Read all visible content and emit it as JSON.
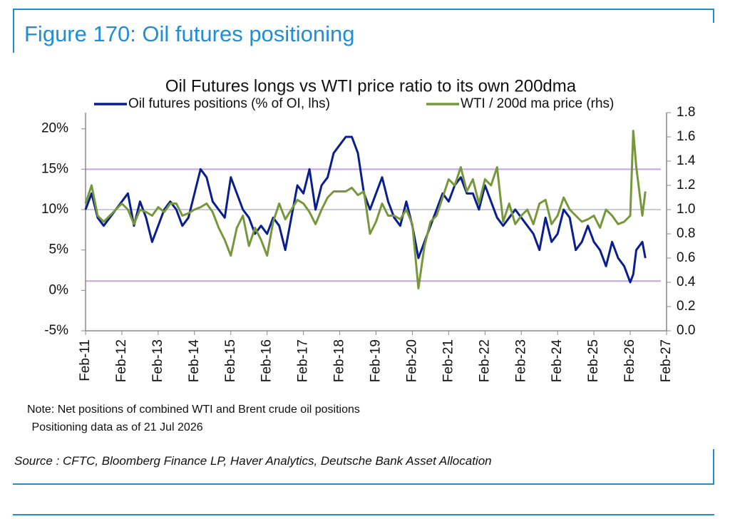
{
  "header": {
    "title": "Figure 170: Oil futures positioning"
  },
  "chart_data": {
    "type": "line",
    "title": "Oil Futures longs vs WTI price ratio to its own 200dma",
    "x": [
      "2011-02",
      "2011-04",
      "2011-06",
      "2011-08",
      "2011-10",
      "2011-12",
      "2012-02",
      "2012-04",
      "2012-06",
      "2012-08",
      "2012-10",
      "2012-12",
      "2013-02",
      "2013-04",
      "2013-06",
      "2013-08",
      "2013-10",
      "2013-12",
      "2014-02",
      "2014-04",
      "2014-06",
      "2014-08",
      "2014-10",
      "2014-12",
      "2015-02",
      "2015-04",
      "2015-06",
      "2015-08",
      "2015-10",
      "2015-12",
      "2016-02",
      "2016-04",
      "2016-06",
      "2016-08",
      "2016-10",
      "2016-12",
      "2017-02",
      "2017-04",
      "2017-06",
      "2017-08",
      "2017-10",
      "2017-12",
      "2018-02",
      "2018-04",
      "2018-06",
      "2018-08",
      "2018-10",
      "2018-12",
      "2019-02",
      "2019-04",
      "2019-06",
      "2019-08",
      "2019-10",
      "2019-12",
      "2020-02",
      "2020-04",
      "2020-06",
      "2020-08",
      "2020-10",
      "2020-12",
      "2021-02",
      "2021-04",
      "2021-06",
      "2021-08",
      "2021-10",
      "2021-12",
      "2022-02",
      "2022-04",
      "2022-06",
      "2022-08",
      "2022-10",
      "2022-12",
      "2023-02",
      "2023-04",
      "2023-06",
      "2023-08",
      "2023-10",
      "2023-12",
      "2024-02",
      "2024-04",
      "2024-06",
      "2024-08",
      "2024-10",
      "2024-12",
      "2025-02",
      "2025-04",
      "2025-06",
      "2025-08",
      "2025-10",
      "2025-12",
      "2026-02",
      "2026-03",
      "2026-04",
      "2026-06",
      "2026-07"
    ],
    "series": [
      {
        "name": "Oil futures positions (% of OI, lhs)",
        "color": "#0a1f8f",
        "axis": "y",
        "values": [
          10,
          12,
          9,
          8,
          9,
          10,
          11,
          12,
          8,
          11,
          9,
          6,
          8,
          10,
          11,
          10,
          8,
          9,
          12,
          15,
          14,
          11,
          10,
          9,
          14,
          12,
          10,
          9,
          7,
          8,
          7,
          9,
          8,
          5,
          9,
          13,
          12,
          15,
          10,
          13,
          14,
          17,
          18,
          19,
          19,
          17,
          12,
          10,
          12,
          14,
          11,
          9,
          8,
          11,
          8,
          4,
          6,
          8,
          10,
          12,
          11,
          13,
          14,
          12,
          12,
          10,
          13,
          11,
          9,
          8,
          9,
          10,
          9,
          8,
          7,
          5,
          9,
          6,
          7,
          10,
          9,
          5,
          6,
          8,
          6,
          5,
          3,
          6,
          4,
          3,
          1,
          2,
          5,
          6,
          4
        ]
      },
      {
        "name": "WTI / 200d ma price (rhs)",
        "color": "#77983a",
        "axis": "y2",
        "values": [
          1.05,
          1.2,
          0.95,
          0.9,
          0.95,
          1.0,
          1.05,
          1.0,
          0.88,
          1.0,
          0.98,
          0.95,
          1.02,
          0.98,
          1.05,
          1.05,
          0.95,
          0.97,
          1.0,
          1.02,
          1.05,
          0.98,
          0.85,
          0.75,
          0.62,
          0.85,
          0.95,
          0.7,
          0.85,
          0.75,
          0.62,
          0.9,
          1.05,
          0.92,
          1.0,
          1.08,
          1.05,
          0.98,
          0.88,
          1.0,
          1.1,
          1.15,
          1.15,
          1.15,
          1.18,
          1.12,
          1.15,
          0.8,
          0.9,
          1.05,
          0.95,
          0.95,
          0.92,
          1.0,
          0.88,
          0.35,
          0.7,
          0.9,
          0.95,
          1.1,
          1.25,
          1.2,
          1.35,
          1.15,
          1.25,
          1.05,
          1.25,
          1.2,
          1.35,
          0.9,
          1.05,
          0.88,
          0.95,
          1.0,
          0.88,
          1.05,
          1.08,
          0.88,
          0.95,
          1.1,
          1.0,
          0.95,
          0.9,
          0.92,
          0.95,
          0.85,
          1.0,
          0.95,
          0.88,
          0.9,
          0.95,
          1.65,
          1.35,
          0.95,
          1.15
        ]
      }
    ],
    "xlim": [
      "2011-02",
      "2027-02"
    ],
    "xticks": [
      {
        "value": "2011-02",
        "label": "Feb-11"
      },
      {
        "value": "2012-02",
        "label": "Feb-12"
      },
      {
        "value": "2013-02",
        "label": "Feb-13"
      },
      {
        "value": "2014-02",
        "label": "Feb-14"
      },
      {
        "value": "2015-02",
        "label": "Feb-15"
      },
      {
        "value": "2016-02",
        "label": "Feb-16"
      },
      {
        "value": "2017-02",
        "label": "Feb-17"
      },
      {
        "value": "2018-02",
        "label": "Feb-18"
      },
      {
        "value": "2019-02",
        "label": "Feb-19"
      },
      {
        "value": "2020-02",
        "label": "Feb-20"
      },
      {
        "value": "2021-02",
        "label": "Feb-21"
      },
      {
        "value": "2022-02",
        "label": "Feb-22"
      },
      {
        "value": "2023-02",
        "label": "Feb-23"
      },
      {
        "value": "2024-02",
        "label": "Feb-24"
      },
      {
        "value": "2025-02",
        "label": "Feb-25"
      },
      {
        "value": "2026-02",
        "label": "Feb-26"
      },
      {
        "value": "2027-02",
        "label": "Feb-27"
      }
    ],
    "ylim": [
      -5,
      22
    ],
    "yticks": [
      {
        "value": -5,
        "label": "-5%"
      },
      {
        "value": 0,
        "label": "0%"
      },
      {
        "value": 5,
        "label": "5%"
      },
      {
        "value": 10,
        "label": "10%"
      },
      {
        "value": 15,
        "label": "15%"
      },
      {
        "value": 20,
        "label": "20%"
      }
    ],
    "y2lim": [
      0,
      1.8
    ],
    "y2ticks": [
      {
        "value": 0,
        "label": "0.0"
      },
      0.2,
      0.4,
      0.6,
      0.8,
      {
        "value": 1,
        "label": "1.0"
      },
      1.2,
      1.4,
      1.6,
      1.8
    ],
    "reference_lines": [
      {
        "axis": "y",
        "value": 15,
        "color": "#c6a2ee"
      },
      {
        "axis": "y2",
        "value": 0.41,
        "color": "#c6a2ee"
      },
      {
        "axis": "y2",
        "value": 1,
        "color": "#c9c9dc"
      }
    ],
    "legend": "top",
    "notes": [
      "Note: Net positions of combined WTI and Brent crude oil positions",
      " Positioning data as of 21 Jul 2026"
    ],
    "source": "Source : CFTC, Bloomberg Finance LP, Haver Analytics, Deutsche Bank Asset Allocation"
  }
}
